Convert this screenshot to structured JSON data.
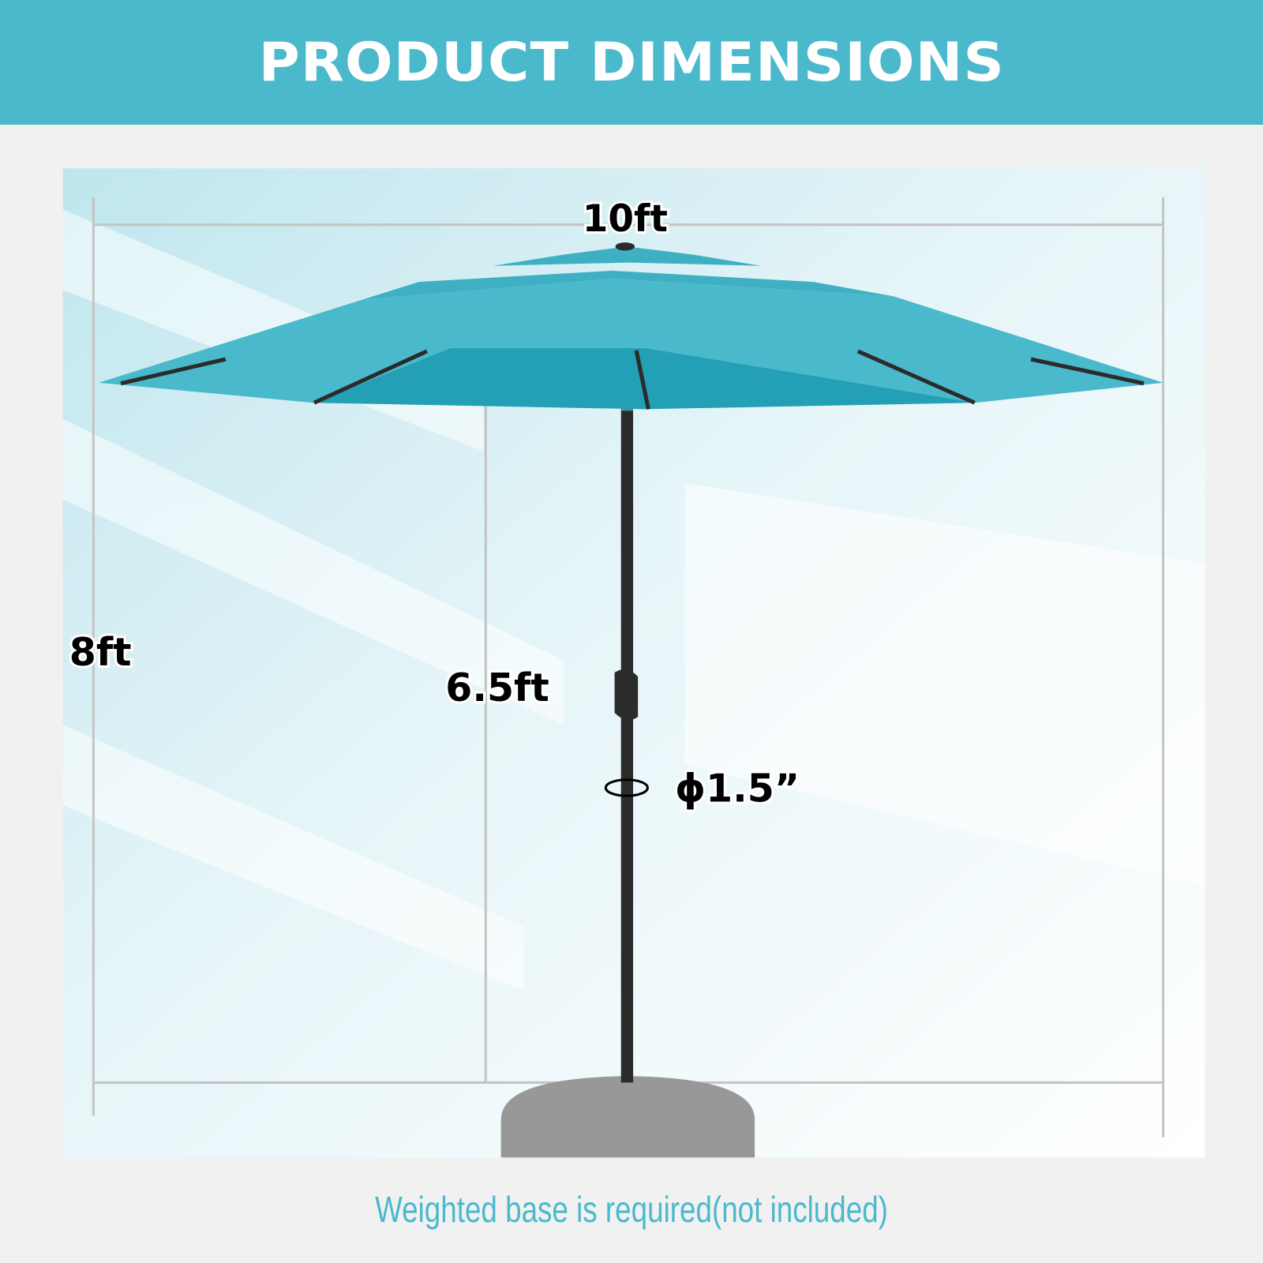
{
  "header": {
    "title": "PRODUCT DIMENSIONS"
  },
  "dimensions": {
    "canopy_width": "10ft",
    "total_height": "8ft",
    "clearance_height": "6.5ft",
    "pole_diameter": "ϕ1.5”"
  },
  "footer": {
    "note": "Weighted base is required(not included)"
  },
  "colors": {
    "accent": "#4bb9cc",
    "canopy": "#2aa9bf",
    "pole": "#2b2b2b",
    "base": "#989898"
  }
}
